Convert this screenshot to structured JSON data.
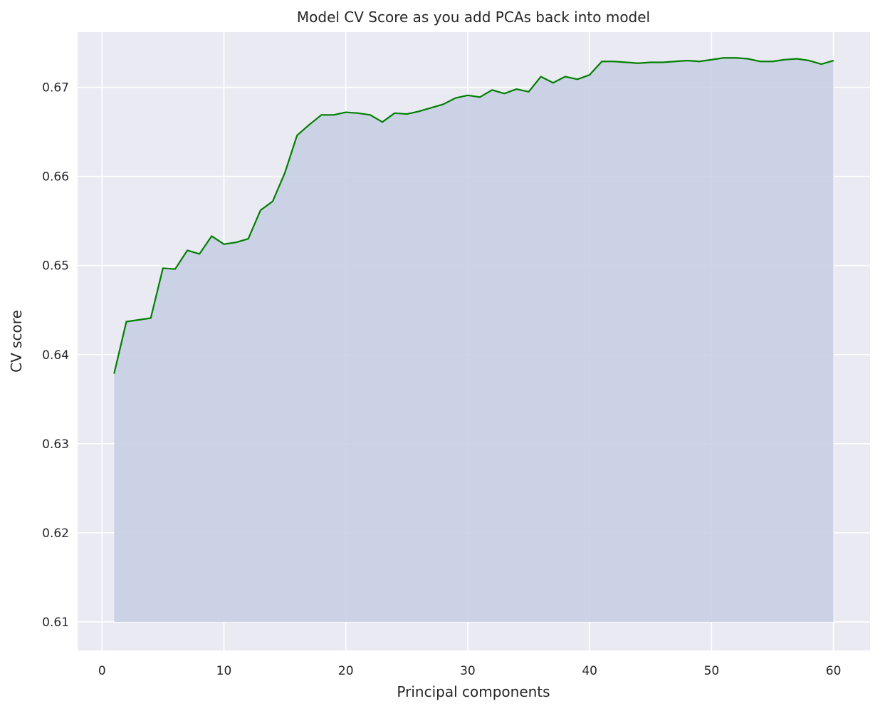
{
  "chart_data": {
    "type": "area",
    "title": "Model CV Score as you add PCAs back into model",
    "xlabel": "Principal components",
    "ylabel": "CV score",
    "xlim": [
      -2,
      63
    ],
    "ylim": [
      0.6068,
      0.6762
    ],
    "xticks": [
      0,
      10,
      20,
      30,
      40,
      50,
      60
    ],
    "yticks": [
      0.61,
      0.62,
      0.63,
      0.64,
      0.65,
      0.66,
      0.67
    ],
    "grid": true,
    "fill_baseline": 0.61,
    "colors": {
      "line": "#008000",
      "fill": "#c9cfe3",
      "background": "#eaeaf2",
      "grid": "#ffffff",
      "text": "#262626"
    },
    "series": [
      {
        "x": [
          1,
          2,
          3,
          4,
          5,
          6,
          7,
          8,
          9,
          10,
          11,
          12,
          13,
          14,
          15,
          16,
          17,
          18,
          19,
          20,
          21,
          22,
          23,
          24,
          25,
          26,
          27,
          28,
          29,
          30,
          31,
          32,
          33,
          34,
          35,
          36,
          37,
          38,
          39,
          40,
          41,
          42,
          43,
          44,
          45,
          46,
          47,
          48,
          49,
          50,
          51,
          52,
          53,
          54,
          55,
          56,
          57,
          58,
          59,
          60
        ],
        "y": [
          0.6379,
          0.6437,
          0.6439,
          0.6441,
          0.6497,
          0.6496,
          0.6517,
          0.6513,
          0.6533,
          0.6524,
          0.6526,
          0.653,
          0.6562,
          0.6572,
          0.6604,
          0.6646,
          0.6658,
          0.6669,
          0.6669,
          0.6672,
          0.6671,
          0.6669,
          0.6661,
          0.6671,
          0.667,
          0.6673,
          0.6677,
          0.6681,
          0.6688,
          0.6691,
          0.6689,
          0.6697,
          0.6693,
          0.6698,
          0.6695,
          0.6712,
          0.6705,
          0.6712,
          0.6709,
          0.6714,
          0.6729,
          0.6729,
          0.6728,
          0.6727,
          0.6728,
          0.6728,
          0.6729,
          0.673,
          0.6729,
          0.6731,
          0.6733,
          0.6733,
          0.6732,
          0.6729,
          0.6729,
          0.6731,
          0.6732,
          0.673,
          0.6726,
          0.673
        ]
      }
    ]
  }
}
